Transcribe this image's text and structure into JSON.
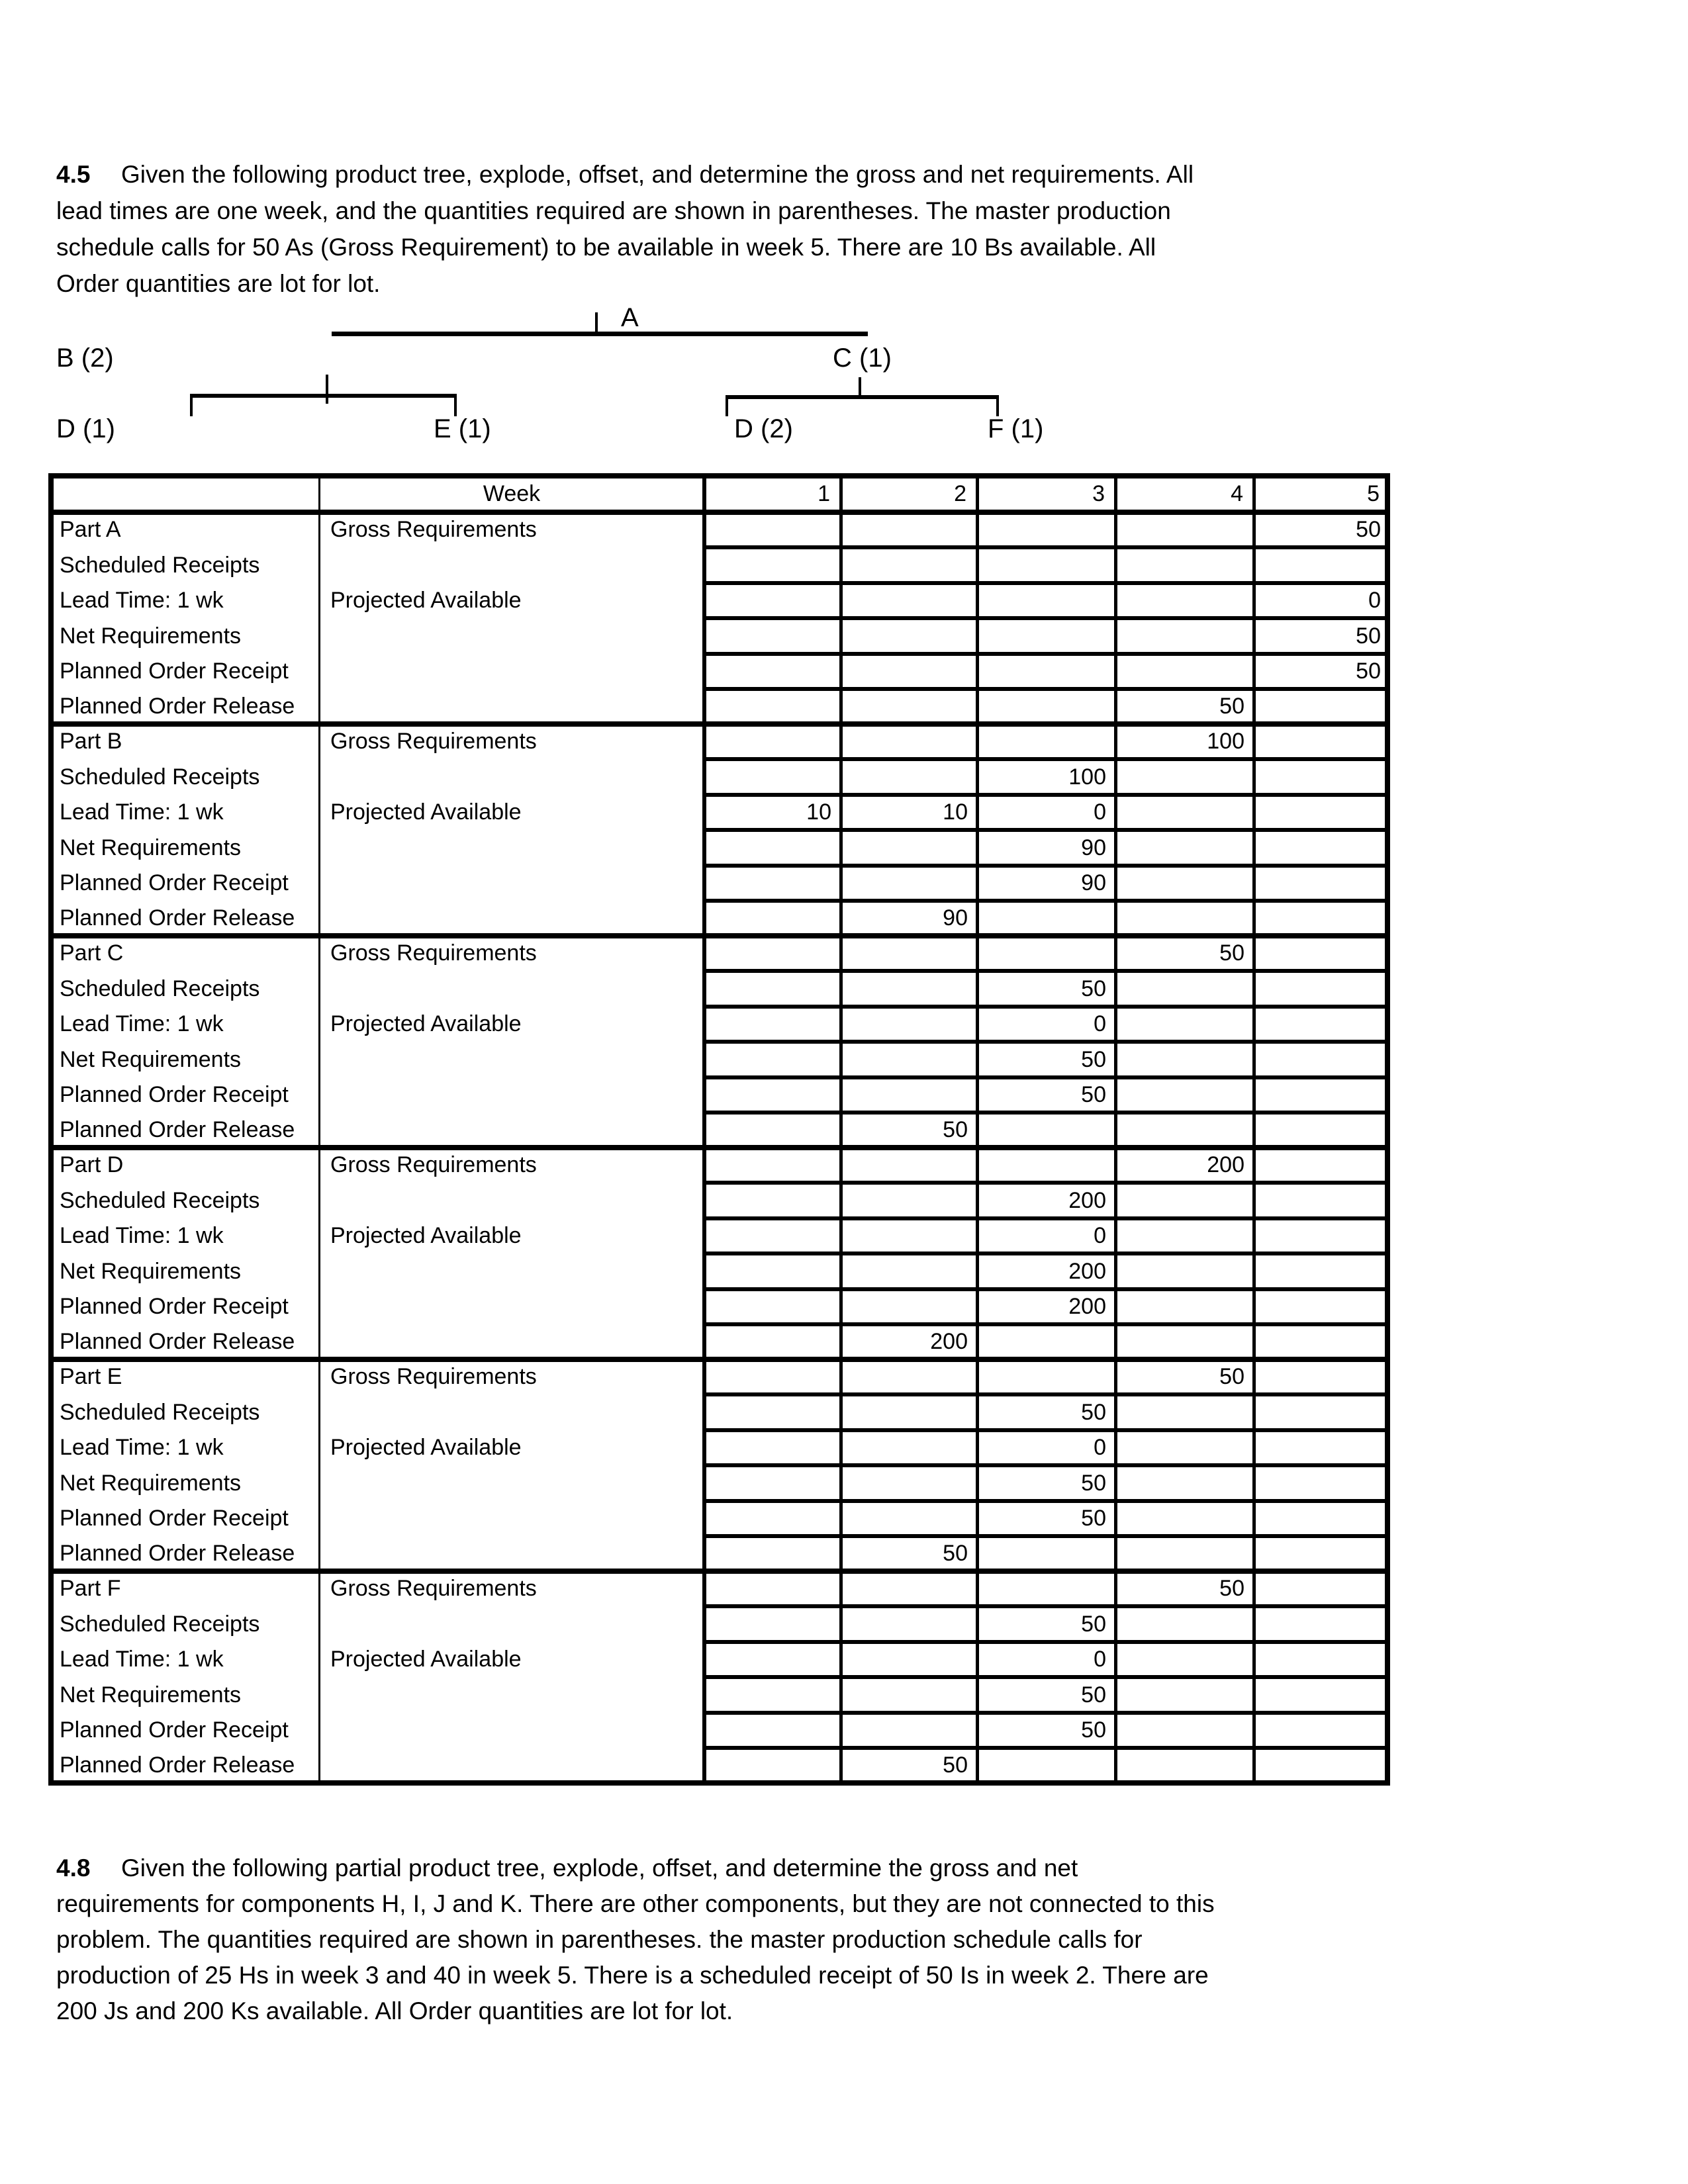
{
  "problem_45": {
    "number": "4.5",
    "lines": [
      "Given the following product tree, explode, offset, and determine the gross and net requirements. All",
      "lead times are one week, and the quantities required are shown in parentheses. The master production",
      "schedule calls for 50 As (Gross Requirement) to be available in week 5. There are 10 Bs available. All",
      "Order quantities are lot for lot."
    ]
  },
  "tree": {
    "root": "A",
    "b": "B (2)",
    "c": "C (1)",
    "d1": "D (1)",
    "e": "E (1)",
    "d2": "D (2)",
    "f": "F (1)"
  },
  "table": {
    "week_label": "Week",
    "weeks": [
      "1",
      "2",
      "3",
      "4",
      "5"
    ],
    "sections": [
      {
        "part": "Part A",
        "row_labels": [
          "Part A",
          "Scheduled Receipts",
          "Lead Time: 1 wk",
          "Net Requirements",
          "Planned Order Receipt",
          "Planned Order Release"
        ],
        "gross_label": "Gross Requirements",
        "projected_label": "Projected Available",
        "values": [
          [
            "",
            "",
            "",
            "",
            "50"
          ],
          [
            "",
            "",
            "",
            "",
            ""
          ],
          [
            "",
            "",
            "",
            "",
            "0"
          ],
          [
            "",
            "",
            "",
            "",
            "50"
          ],
          [
            "",
            "",
            "",
            "",
            "50"
          ],
          [
            "",
            "",
            "",
            "50",
            ""
          ]
        ]
      },
      {
        "part": "Part B",
        "row_labels": [
          "Part B",
          "Scheduled Receipts",
          "Lead Time: 1 wk",
          "Net Requirements",
          "Planned Order Receipt",
          "Planned Order Release"
        ],
        "gross_label": "Gross Requirements",
        "projected_label": "Projected Available",
        "values": [
          [
            "",
            "",
            "",
            "100",
            ""
          ],
          [
            "",
            "",
            "100",
            "",
            ""
          ],
          [
            "10",
            "10",
            "0",
            "",
            ""
          ],
          [
            "",
            "",
            "90",
            "",
            ""
          ],
          [
            "",
            "",
            "90",
            "",
            ""
          ],
          [
            "",
            "90",
            "",
            "",
            ""
          ]
        ]
      },
      {
        "part": "Part C",
        "row_labels": [
          "Part C",
          "Scheduled Receipts",
          "Lead Time: 1 wk",
          "Net Requirements",
          "Planned Order Receipt",
          "Planned Order Release"
        ],
        "gross_label": "Gross Requirements",
        "projected_label": "Projected Available",
        "values": [
          [
            "",
            "",
            "",
            "50",
            ""
          ],
          [
            "",
            "",
            "50",
            "",
            ""
          ],
          [
            "",
            "",
            "0",
            "",
            ""
          ],
          [
            "",
            "",
            "50",
            "",
            ""
          ],
          [
            "",
            "",
            "50",
            "",
            ""
          ],
          [
            "",
            "50",
            "",
            "",
            ""
          ]
        ]
      },
      {
        "part": "Part D",
        "row_labels": [
          "Part D",
          "Scheduled Receipts",
          "Lead Time: 1 wk",
          "Net Requirements",
          "Planned Order Receipt",
          "Planned Order Release"
        ],
        "gross_label": "Gross Requirements",
        "projected_label": "Projected Available",
        "values": [
          [
            "",
            "",
            "",
            "200",
            ""
          ],
          [
            "",
            "",
            "200",
            "",
            ""
          ],
          [
            "",
            "",
            "0",
            "",
            ""
          ],
          [
            "",
            "",
            "200",
            "",
            ""
          ],
          [
            "",
            "",
            "200",
            "",
            ""
          ],
          [
            "",
            "200",
            "",
            "",
            ""
          ]
        ]
      },
      {
        "part": "Part E",
        "row_labels": [
          "Part E",
          "Scheduled Receipts",
          "Lead Time: 1 wk",
          "Net Requirements",
          "Planned Order Receipt",
          "Planned Order Release"
        ],
        "gross_label": "Gross Requirements",
        "projected_label": "Projected Available",
        "values": [
          [
            "",
            "",
            "",
            "50",
            ""
          ],
          [
            "",
            "",
            "50",
            "",
            ""
          ],
          [
            "",
            "",
            "0",
            "",
            ""
          ],
          [
            "",
            "",
            "50",
            "",
            ""
          ],
          [
            "",
            "",
            "50",
            "",
            ""
          ],
          [
            "",
            "50",
            "",
            "",
            ""
          ]
        ]
      },
      {
        "part": "Part F",
        "row_labels": [
          "Part F",
          "Scheduled Receipts",
          "Lead Time: 1 wk",
          "Net Requirements",
          "Planned Order Receipt",
          "Planned Order Release"
        ],
        "gross_label": "Gross Requirements",
        "projected_label": "Projected Available",
        "values": [
          [
            "",
            "",
            "",
            "50",
            ""
          ],
          [
            "",
            "",
            "50",
            "",
            ""
          ],
          [
            "",
            "",
            "0",
            "",
            ""
          ],
          [
            "",
            "",
            "50",
            "",
            ""
          ],
          [
            "",
            "",
            "50",
            "",
            ""
          ],
          [
            "",
            "50",
            "",
            "",
            ""
          ]
        ]
      }
    ]
  },
  "problem_48": {
    "number": "4.8",
    "lines": [
      "Given the following partial product tree, explode, offset, and determine the gross and net",
      "requirements for components H, I, J and K. There are other components, but they are not connected to this",
      "problem. The quantities required are shown in parentheses. the master production schedule calls for",
      "production of 25 Hs in week 3 and 40 in week 5. There is a scheduled receipt of 50 Is in week 2. There are",
      "200 Js and 200 Ks available. All Order quantities are lot for lot."
    ]
  }
}
